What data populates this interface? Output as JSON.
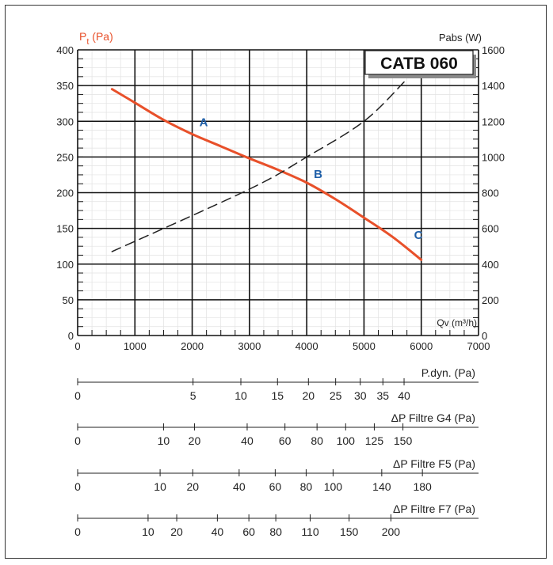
{
  "chart_data": {
    "type": "line",
    "model_label": "CATB 060",
    "left_axis_label": {
      "main": "P",
      "sub": "t",
      "unit": " (Pa)"
    },
    "right_axis_label": "Pabs (W)",
    "x_axis_label": "Qv (m³/h)",
    "xlim": [
      0,
      7000
    ],
    "ylim_left": [
      0,
      400
    ],
    "ylim_right": [
      0,
      1600
    ],
    "x_ticks": [
      0,
      1000,
      2000,
      3000,
      4000,
      5000,
      6000,
      7000
    ],
    "y_ticks_left": [
      0,
      50,
      100,
      150,
      200,
      250,
      300,
      350,
      400
    ],
    "y_ticks_right": [
      0,
      200,
      400,
      600,
      800,
      1000,
      1200,
      1400,
      1600
    ],
    "grid": true,
    "series": [
      {
        "id": "pressure",
        "axis": "left",
        "color": "#e8502a",
        "style": "solid",
        "x": [
          600,
          1000,
          1500,
          2000,
          2500,
          3000,
          3500,
          4000,
          4500,
          5000,
          5500,
          6000
        ],
        "y": [
          345,
          326,
          302,
          282,
          265,
          248,
          232,
          214,
          191,
          165,
          138,
          106
        ]
      },
      {
        "id": "power",
        "axis": "right",
        "color": "#222222",
        "style": "dashed",
        "x": [
          600,
          3000,
          4000,
          5000,
          5700
        ],
        "y": [
          470,
          820,
          1000,
          1200,
          1420
        ]
      }
    ],
    "points": [
      {
        "label": "A",
        "x": 2200,
        "y": 300
      },
      {
        "label": "B",
        "x": 4200,
        "y": 227
      },
      {
        "label": "C",
        "x": 5950,
        "y": 142
      }
    ],
    "secondary_scales": [
      {
        "label": "P.dyn. (Pa)",
        "values": [
          "0",
          "5",
          "10",
          "15",
          "20",
          "25",
          "30",
          "35",
          "40"
        ],
        "qv": [
          0,
          2015,
          2850,
          3490,
          4030,
          4505,
          4935,
          5330,
          5700
        ]
      },
      {
        "label": "ΔP Filtre G4 (Pa)",
        "values": [
          "0",
          "10",
          "20",
          "40",
          "60",
          "80",
          "100",
          "125",
          "150"
        ],
        "qv": [
          0,
          1500,
          2040,
          2960,
          3620,
          4180,
          4680,
          5180,
          5680
        ]
      },
      {
        "label": "ΔP Filtre F5 (Pa)",
        "values": [
          "0",
          "10",
          "20",
          "40",
          "60",
          "80",
          "100",
          "140",
          "180"
        ],
        "qv": [
          0,
          1440,
          2010,
          2820,
          3450,
          3990,
          4460,
          5310,
          6020
        ]
      },
      {
        "label": "ΔP Filtre F7 (Pa)",
        "values": [
          "0",
          "10",
          "20",
          "40",
          "60",
          "80",
          "110",
          "150",
          "200"
        ],
        "qv": [
          0,
          1230,
          1730,
          2440,
          2990,
          3460,
          4060,
          4740,
          5470
        ]
      }
    ]
  }
}
